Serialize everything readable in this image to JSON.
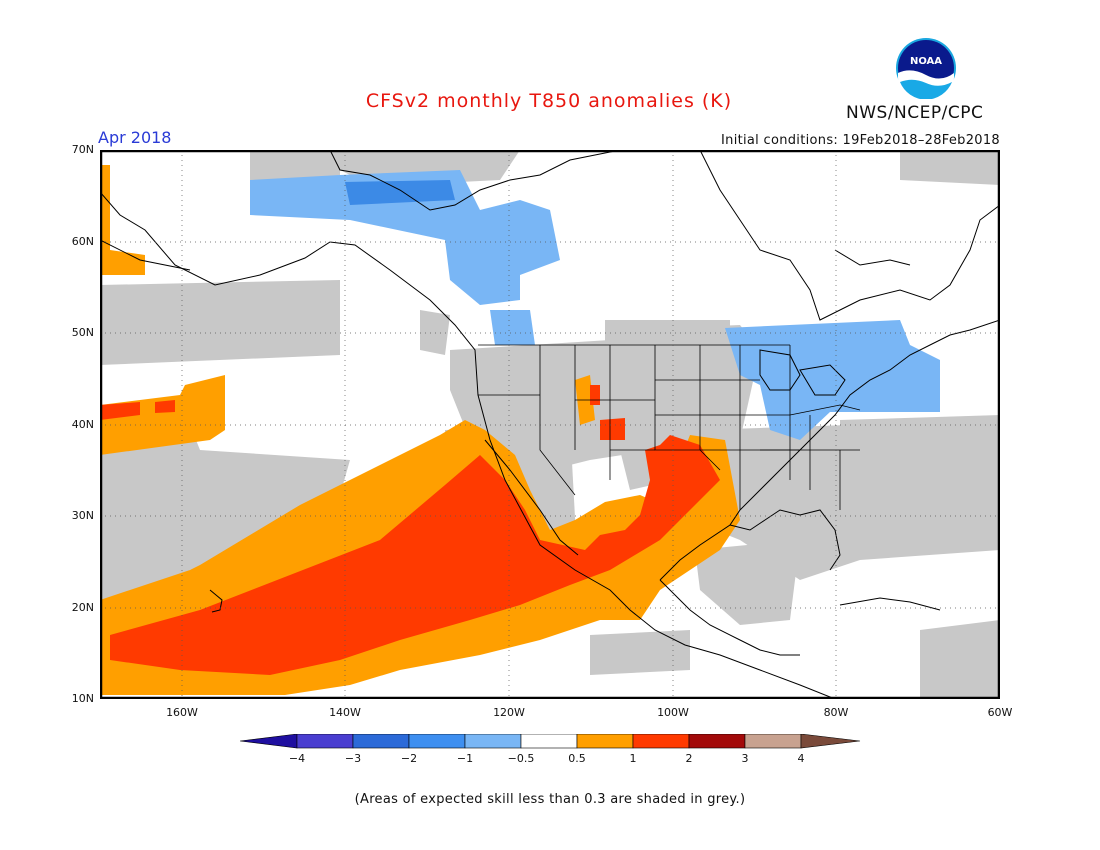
{
  "header": {
    "title": "CFSv2 monthly T850 anomalies (K)",
    "agency": "NWS/NCEP/CPC",
    "logo_text": "NOAA",
    "period": "Apr 2018",
    "initial_conditions": "Initial conditions: 19Feb2018–28Feb2018"
  },
  "map": {
    "lat_labels": [
      "70N",
      "60N",
      "50N",
      "40N",
      "30N",
      "20N",
      "10N"
    ],
    "lon_labels": [
      "160W",
      "140W",
      "120W",
      "100W",
      "80W",
      "60W"
    ],
    "extent": {
      "lon": [
        -171,
        -60
      ],
      "lat": [
        10,
        70
      ]
    },
    "gridlines": "dotted",
    "colors": {
      "grey_low_skill": "#c8c8c8",
      "light_blue": "#79b6f5",
      "mid_blue": "#3c8ae6",
      "orange": "#ff9f00",
      "red_orange": "#ff3a00",
      "frame": "#000000"
    }
  },
  "colorbar": {
    "labels": [
      "−4",
      "−3",
      "−2",
      "−1",
      "−0.5",
      "0.5",
      "1",
      "2",
      "3",
      "4"
    ],
    "colors": [
      "#1f0fa0",
      "#4a3ed0",
      "#2c6ad8",
      "#3e8ff0",
      "#79b6f5",
      "#ffffff",
      "#ff9f00",
      "#ff3a00",
      "#a30a0a",
      "#c8a290",
      "#7a4a3a"
    ]
  },
  "footer": {
    "note": "(Areas of expected skill less than 0.3 are shaded in grey.)"
  }
}
